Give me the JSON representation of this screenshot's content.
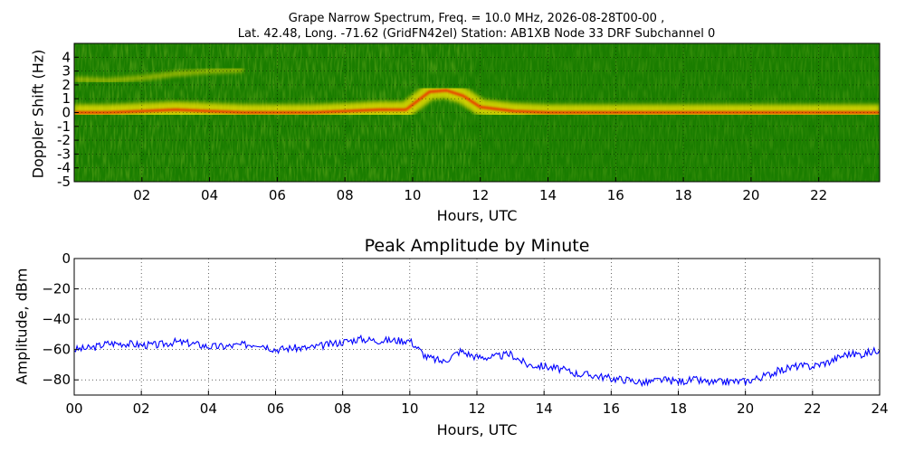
{
  "header": {
    "title_line1": "Grape Narrow Spectrum, Freq. = 10.0 MHz, 2026-08-28T00-00 ,",
    "title_line2": "Lat.  42.48, Long. -71.62 (GridFN42el) Station: AB1XB Node 33 DRF Subchannel 0"
  },
  "colors": {
    "spectrogram_background": "#1a7d00",
    "trace_main": "#f21a00",
    "trace_high": "#ffe600",
    "amplitude_line": "#0000ff"
  },
  "chart_data": [
    {
      "type": "heatmap",
      "title": "",
      "xlabel": "Hours, UTC",
      "ylabel": "Doppler Shift (Hz)",
      "xlim": [
        0,
        23.8
      ],
      "ylim": [
        -5,
        5
      ],
      "x_ticks": [
        "02",
        "04",
        "06",
        "08",
        "10",
        "12",
        "14",
        "16",
        "18",
        "20",
        "22"
      ],
      "y_ticks": [
        "4",
        "3",
        "2",
        "1",
        "0",
        "-1",
        "-2",
        "-3",
        "-4",
        "-5"
      ],
      "colormap": "green-yellow-red",
      "grid": true,
      "main_trace": {
        "x": [
          0,
          1,
          2,
          3,
          4,
          5,
          6,
          7,
          8,
          9,
          9.8,
          10.5,
          11,
          11.5,
          12,
          13,
          14,
          15,
          16,
          17,
          18,
          19,
          20,
          21,
          22,
          23,
          23.8
        ],
        "doppler_hz": [
          0,
          0,
          0.1,
          0.2,
          0.1,
          0,
          0,
          0,
          0.1,
          0.2,
          0.2,
          1.5,
          1.6,
          1.2,
          0.4,
          0.1,
          0,
          0,
          0,
          0,
          0,
          0,
          0,
          0,
          0,
          0,
          0
        ]
      },
      "high_trace": {
        "x": [
          0,
          1,
          2,
          3,
          4,
          5
        ],
        "doppler_hz": [
          2.4,
          2.3,
          2.5,
          2.8,
          3.0,
          3.1
        ]
      }
    },
    {
      "type": "line",
      "title": "Peak Amplitude by Minute",
      "xlabel": "Hours, UTC",
      "ylabel": "Amplitude, dBm",
      "xlim": [
        0,
        24
      ],
      "ylim": [
        -90,
        0
      ],
      "x_ticks": [
        "00",
        "02",
        "04",
        "06",
        "08",
        "10",
        "12",
        "14",
        "16",
        "18",
        "20",
        "22",
        "24"
      ],
      "y_ticks": [
        "0",
        "−20",
        "−40",
        "−60",
        "−80"
      ],
      "grid": true,
      "series": [
        {
          "x": [
            0,
            0.5,
            1,
            1.5,
            2,
            2.5,
            3,
            3.5,
            4,
            4.5,
            5,
            5.5,
            6,
            6.5,
            7,
            7.5,
            8,
            8.5,
            9,
            9.5,
            10,
            10.5,
            11,
            11.5,
            12,
            12.5,
            13,
            13.5,
            14,
            14.5,
            15,
            15.5,
            16,
            16.5,
            17,
            17.5,
            18,
            18.5,
            19,
            19.5,
            20,
            20.5,
            21,
            21.5,
            22,
            22.5,
            23,
            23.5,
            24
          ],
          "values": [
            -60,
            -59,
            -56,
            -56,
            -57,
            -57,
            -55,
            -56,
            -58,
            -58,
            -57,
            -56,
            -60,
            -59,
            -59,
            -57,
            -55,
            -53,
            -54,
            -54,
            -54,
            -65,
            -68,
            -61,
            -65,
            -65,
            -63,
            -70,
            -71,
            -73,
            -76,
            -77,
            -79,
            -80,
            -82,
            -80,
            -81,
            -80,
            -82,
            -81,
            -81,
            -78,
            -74,
            -71,
            -71,
            -68,
            -63,
            -63,
            -60
          ]
        }
      ]
    }
  ]
}
